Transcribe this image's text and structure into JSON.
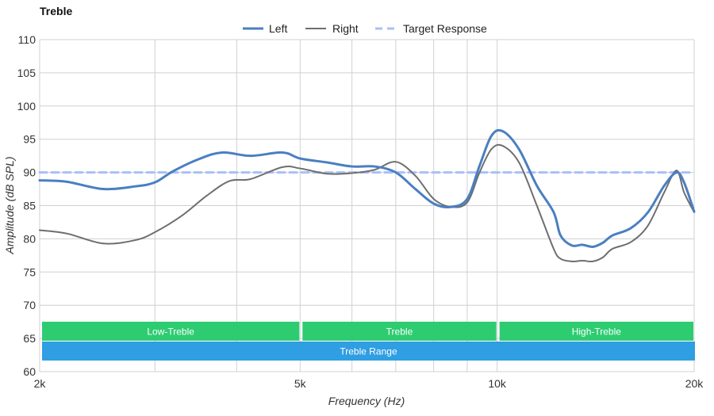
{
  "chart_data": {
    "type": "line",
    "title": "Treble",
    "xlabel": "Frequency (Hz)",
    "ylabel": "Amplitude (dB SPL)",
    "x_scale": "log",
    "xlim": [
      2000,
      20000
    ],
    "ylim": [
      60,
      110
    ],
    "x_ticks": [
      {
        "value": 2000,
        "label": "2k"
      },
      {
        "value": 5000,
        "label": "5k"
      },
      {
        "value": 10000,
        "label": "10k"
      },
      {
        "value": 20000,
        "label": "20k"
      }
    ],
    "x_gridlines": [
      2000,
      3000,
      4000,
      5000,
      6000,
      7000,
      8000,
      9000,
      10000,
      20000
    ],
    "y_ticks": [
      60,
      65,
      70,
      75,
      80,
      85,
      90,
      95,
      100,
      105,
      110
    ],
    "grid": true,
    "legend_position": "top-center",
    "series": [
      {
        "name": "Left",
        "color": "#4a7fc1",
        "style": "solid-thick",
        "points": [
          [
            2000,
            88.8
          ],
          [
            2200,
            88.6
          ],
          [
            2500,
            87.5
          ],
          [
            2800,
            87.9
          ],
          [
            3000,
            88.5
          ],
          [
            3200,
            90.2
          ],
          [
            3500,
            92.0
          ],
          [
            3800,
            93.0
          ],
          [
            4200,
            92.5
          ],
          [
            4700,
            93.0
          ],
          [
            5000,
            92.1
          ],
          [
            5500,
            91.5
          ],
          [
            6000,
            90.9
          ],
          [
            6500,
            90.9
          ],
          [
            7000,
            90.0
          ],
          [
            7500,
            87.5
          ],
          [
            8000,
            85.3
          ],
          [
            8500,
            84.8
          ],
          [
            9000,
            86.0
          ],
          [
            9400,
            91.0
          ],
          [
            9800,
            95.5
          ],
          [
            10200,
            96.2
          ],
          [
            10800,
            93.5
          ],
          [
            11500,
            88.0
          ],
          [
            12200,
            84.0
          ],
          [
            12500,
            80.5
          ],
          [
            13000,
            79.0
          ],
          [
            13500,
            79.1
          ],
          [
            14000,
            78.8
          ],
          [
            14500,
            79.4
          ],
          [
            15000,
            80.5
          ],
          [
            16000,
            81.6
          ],
          [
            17000,
            84.0
          ],
          [
            18000,
            88.0
          ],
          [
            18800,
            90.0
          ],
          [
            19300,
            88.5
          ],
          [
            20000,
            84.1
          ]
        ]
      },
      {
        "name": "Right",
        "color": "#6e6e6e",
        "style": "solid-thin",
        "points": [
          [
            2000,
            81.3
          ],
          [
            2200,
            80.8
          ],
          [
            2500,
            79.3
          ],
          [
            2800,
            79.8
          ],
          [
            3000,
            81.0
          ],
          [
            3300,
            83.5
          ],
          [
            3600,
            86.5
          ],
          [
            3900,
            88.7
          ],
          [
            4200,
            89.0
          ],
          [
            4700,
            90.8
          ],
          [
            5000,
            90.6
          ],
          [
            5500,
            89.8
          ],
          [
            6000,
            89.9
          ],
          [
            6500,
            90.4
          ],
          [
            7000,
            91.6
          ],
          [
            7500,
            89.5
          ],
          [
            8000,
            86.0
          ],
          [
            8500,
            84.8
          ],
          [
            9000,
            85.5
          ],
          [
            9400,
            90.0
          ],
          [
            9800,
            93.5
          ],
          [
            10200,
            94.0
          ],
          [
            10800,
            91.5
          ],
          [
            11500,
            85.0
          ],
          [
            12200,
            78.5
          ],
          [
            12500,
            77.0
          ],
          [
            13000,
            76.6
          ],
          [
            13500,
            76.7
          ],
          [
            14000,
            76.6
          ],
          [
            14500,
            77.2
          ],
          [
            15000,
            78.5
          ],
          [
            16000,
            79.5
          ],
          [
            17000,
            82.0
          ],
          [
            18000,
            87.0
          ],
          [
            18800,
            90.3
          ],
          [
            19300,
            87.0
          ],
          [
            20000,
            84.0
          ]
        ]
      },
      {
        "name": "Target Response",
        "color": "#a8c0f8",
        "style": "dashed",
        "points": [
          [
            2000,
            90
          ],
          [
            20000,
            90
          ]
        ]
      }
    ],
    "range_bands": [
      {
        "label": "Low-Treble",
        "from": 2000,
        "to": 5000,
        "row": 1,
        "color": "#2ecc71"
      },
      {
        "label": "Treble",
        "from": 5000,
        "to": 10000,
        "row": 1,
        "color": "#2ecc71"
      },
      {
        "label": "High-Treble",
        "from": 10000,
        "to": 20000,
        "row": 1,
        "color": "#2ecc71"
      },
      {
        "label": "Treble Range",
        "from": 2000,
        "to": 20000,
        "row": 2,
        "color": "#2f9ee2"
      }
    ]
  }
}
